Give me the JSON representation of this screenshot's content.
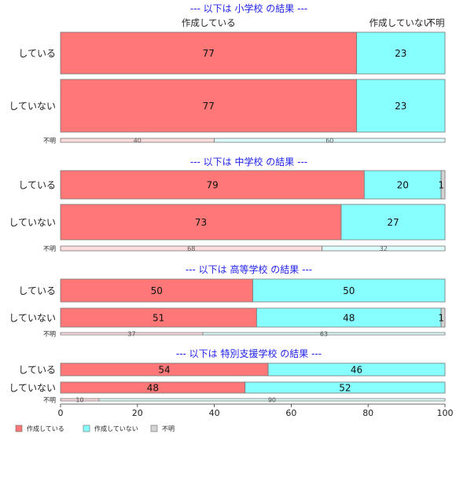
{
  "chart_data": {
    "type": "bar",
    "orientation": "horizontal-stacked-percent",
    "header_labels": [
      "作成している",
      "作成していない",
      "不明"
    ],
    "xlim": [
      0,
      100
    ],
    "x_ticks": [
      0,
      20,
      40,
      60,
      80,
      100
    ],
    "legend": {
      "placement": "bottom-left",
      "items": [
        "作成している",
        "作成していない",
        "不明"
      ]
    },
    "colors": {
      "作成している": "#ff7777",
      "作成していない": "#88ffff",
      "不明": "#d3d3d3",
      "title": "#2222ee",
      "border": "#777777"
    },
    "panels": [
      {
        "title": "--- 以下は 小学校 の結果 ---",
        "rows": [
          {
            "label": "している",
            "values": [
              77,
              23,
              0
            ],
            "labels": [
              "77",
              "23",
              ""
            ]
          },
          {
            "label": "していない",
            "values": [
              77,
              23,
              0
            ],
            "labels": [
              "77",
              "23",
              ""
            ]
          },
          {
            "label": "不明",
            "values": [
              40,
              60,
              0
            ],
            "labels": [
              "40",
              "60",
              ""
            ]
          }
        ]
      },
      {
        "title": "--- 以下は 中学校 の結果 ---",
        "rows": [
          {
            "label": "している",
            "values": [
              79,
              20,
              1
            ],
            "labels": [
              "79",
              "20",
              "1"
            ]
          },
          {
            "label": "していない",
            "values": [
              73,
              27,
              0
            ],
            "labels": [
              "73",
              "27",
              ""
            ]
          },
          {
            "label": "不明",
            "values": [
              68,
              32,
              0
            ],
            "labels": [
              "68",
              "32",
              ""
            ]
          }
        ]
      },
      {
        "title": "--- 以下は 高等学校 の結果 ---",
        "rows": [
          {
            "label": "している",
            "values": [
              50,
              50,
              0
            ],
            "labels": [
              "50",
              "50",
              ""
            ]
          },
          {
            "label": "していない",
            "values": [
              51,
              48,
              1
            ],
            "labels": [
              "51",
              "48",
              "1"
            ]
          },
          {
            "label": "不明",
            "values": [
              37,
              63,
              0
            ],
            "labels": [
              "37",
              "63",
              ""
            ]
          }
        ]
      },
      {
        "title": "--- 以下は 特別支援学校 の結果 ---",
        "rows": [
          {
            "label": "している",
            "values": [
              54,
              46,
              0
            ],
            "labels": [
              "54",
              "46",
              ""
            ]
          },
          {
            "label": "していない",
            "values": [
              48,
              52,
              0
            ],
            "labels": [
              "48",
              "52",
              ""
            ]
          },
          {
            "label": "不明",
            "values": [
              10,
              90,
              0
            ],
            "labels": [
              "10",
              "90",
              ""
            ]
          }
        ]
      }
    ]
  }
}
